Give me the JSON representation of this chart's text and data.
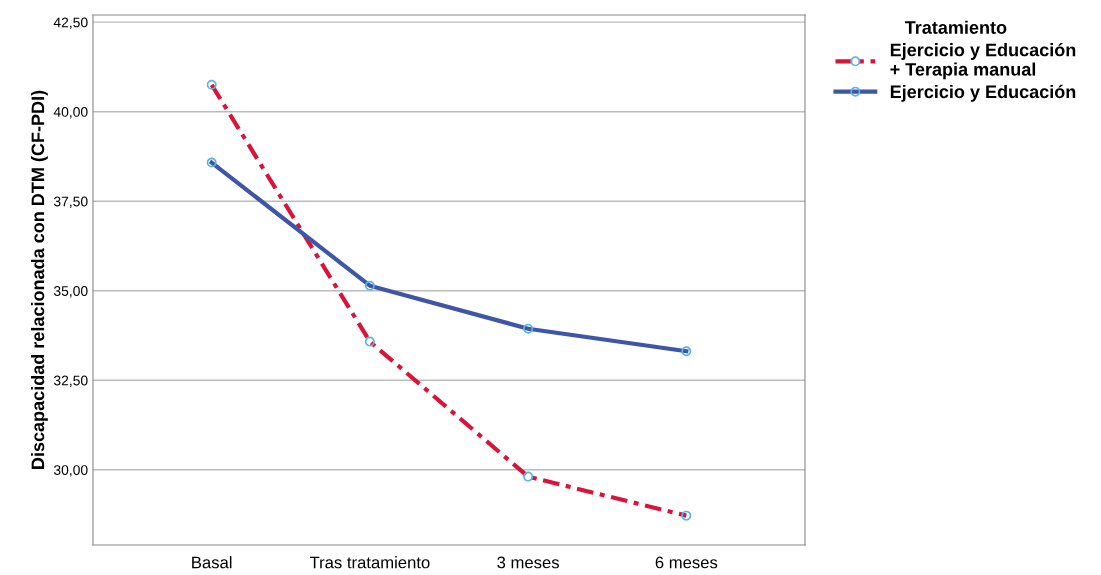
{
  "chart_data": {
    "type": "line",
    "ylabel": "Discapacidad relacionada con DTM (CF-PDI)",
    "legend_title": "Tratamiento",
    "categories": [
      "Basal",
      "Tras tratamiento",
      "3 meses",
      "6 meses"
    ],
    "series": [
      {
        "name": "Ejercicio y Educación\n+ Terapia manual",
        "color": "#d9143a",
        "line_style": "dashed",
        "values": [
          40.75,
          33.58,
          29.81,
          28.72
        ]
      },
      {
        "name": "Ejercicio y Educación",
        "color": "#3f55a5",
        "line_style": "solid",
        "values": [
          38.58,
          35.14,
          33.94,
          33.31
        ]
      }
    ],
    "ylim": [
      27.9,
      42.7
    ],
    "yticks": [
      {
        "value": 30,
        "label": "30,00"
      },
      {
        "value": 32.5,
        "label": "32,50"
      },
      {
        "value": 35,
        "label": "35,00"
      },
      {
        "value": 37.5,
        "label": "37,50"
      },
      {
        "value": 40,
        "label": "40,00"
      },
      {
        "value": 42.5,
        "label": "42,50"
      }
    ],
    "grid": "y",
    "legend": "top right",
    "marker": "circle"
  }
}
